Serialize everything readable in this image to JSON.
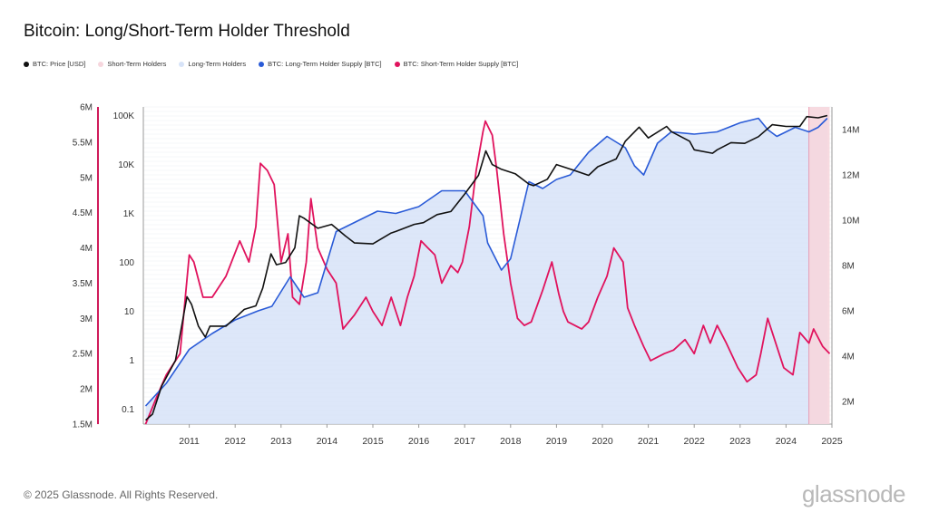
{
  "title": "Bitcoin: Long/Short-Term Holder Threshold",
  "legend": [
    {
      "label": "BTC: Price [USD]",
      "color": "#111111"
    },
    {
      "label": "Short-Term Holders",
      "color": "#f6d6dd"
    },
    {
      "label": "Long-Term Holders",
      "color": "#d7e3f8"
    },
    {
      "label": "BTC: Long-Term Holder Supply [BTC]",
      "color": "#2a5bd7"
    },
    {
      "label": "BTC: Short-Term Holder Supply [BTC]",
      "color": "#e0135d"
    }
  ],
  "footer": "© 2025 Glassnode. All Rights Reserved.",
  "brand": "glassnode",
  "watermark": "glassnode",
  "chart_data": {
    "type": "line",
    "x_ticks": [
      "2011",
      "2012",
      "2013",
      "2014",
      "2015",
      "2016",
      "2017",
      "2018",
      "2019",
      "2020",
      "2021",
      "2022",
      "2023",
      "2024",
      "2025"
    ],
    "axes": {
      "left_outer": {
        "ticks": [
          "1.5M",
          "2M",
          "2.5M",
          "3M",
          "3.5M",
          "4M",
          "4.5M",
          "5M",
          "5.5M",
          "6M"
        ],
        "range": [
          1500000,
          6000000
        ]
      },
      "left_inner": {
        "scale": "log",
        "ticks": [
          "0.1",
          "1",
          "10",
          "100",
          "1K",
          "10K",
          "100K"
        ],
        "range": [
          0.05,
          150000
        ]
      },
      "right": {
        "ticks": [
          "2M",
          "4M",
          "6M",
          "8M",
          "10M",
          "12M",
          "14M"
        ],
        "range": [
          1000000,
          15000000
        ]
      }
    },
    "series": [
      {
        "name": "BTC: Price [USD]",
        "color": "#111111",
        "axis": "left_inner",
        "x": [
          2010.55,
          2010.7,
          2010.9,
          2011.2,
          2011.45,
          2011.55,
          2011.7,
          2011.85,
          2011.95,
          2012.3,
          2012.7,
          2012.95,
          2013.1,
          2013.28,
          2013.4,
          2013.6,
          2013.8,
          2013.9,
          2014.0,
          2014.3,
          2014.6,
          2014.9,
          2015.1,
          2015.5,
          2015.9,
          2016.0,
          2016.4,
          2016.6,
          2016.9,
          2017.2,
          2017.5,
          2017.8,
          2017.96,
          2018.1,
          2018.3,
          2018.6,
          2018.9,
          2019.0,
          2019.3,
          2019.5,
          2019.9,
          2020.2,
          2020.4,
          2020.8,
          2021.0,
          2021.3,
          2021.5,
          2021.9,
          2022.0,
          2022.4,
          2022.5,
          2022.9,
          2023.0,
          2023.3,
          2023.6,
          2023.9,
          2024.2,
          2024.5,
          2024.8,
          2024.95,
          2025.2,
          2025.4
        ],
        "y": [
          0.06,
          0.08,
          0.3,
          1.0,
          20,
          14,
          5,
          3,
          5,
          5,
          11,
          13,
          30,
          150,
          90,
          100,
          200,
          900,
          800,
          500,
          600,
          350,
          250,
          240,
          400,
          430,
          600,
          650,
          950,
          1100,
          2500,
          6000,
          19000,
          10000,
          8000,
          6500,
          4000,
          3700,
          5000,
          10000,
          7500,
          6000,
          9000,
          13000,
          30000,
          58000,
          35000,
          60000,
          47000,
          30000,
          20000,
          17000,
          20000,
          28000,
          27000,
          37000,
          65000,
          60000,
          60000,
          95000,
          90000,
          100000
        ]
      },
      {
        "name": "BTC: Long-Term Holder Supply [BTC]",
        "color": "#2a5bd7",
        "axis": "right",
        "x": [
          2010.55,
          2011.0,
          2011.5,
          2012.0,
          2012.5,
          2013.0,
          2013.3,
          2013.7,
          2014.0,
          2014.3,
          2014.7,
          2015.2,
          2015.6,
          2016.0,
          2016.5,
          2017.0,
          2017.5,
          2017.9,
          2018.0,
          2018.3,
          2018.5,
          2018.9,
          2019.2,
          2019.5,
          2019.8,
          2020.2,
          2020.6,
          2021.0,
          2021.2,
          2021.4,
          2021.7,
          2022.0,
          2022.5,
          2023.0,
          2023.5,
          2023.9,
          2024.1,
          2024.3,
          2024.7,
          2025.0,
          2025.2,
          2025.4
        ],
        "y": [
          1.8,
          2.8,
          4.3,
          5.0,
          5.6,
          6.0,
          6.2,
          7.5,
          6.6,
          6.8,
          9.5,
          10.0,
          10.4,
          10.3,
          10.6,
          11.3,
          11.3,
          10.2,
          9.0,
          7.8,
          8.3,
          11.7,
          11.4,
          11.8,
          12.0,
          13.0,
          13.7,
          13.2,
          12.4,
          12.0,
          13.4,
          13.9,
          13.8,
          13.9,
          14.3,
          14.5,
          14.0,
          13.7,
          14.1,
          13.9,
          14.1,
          14.5
        ]
      },
      {
        "name": "BTC: Short-Term Holder Supply [BTC]",
        "color": "#e0135d",
        "axis": "left_outer",
        "x": [
          2010.55,
          2010.8,
          2011.0,
          2011.3,
          2011.5,
          2011.6,
          2011.8,
          2012.0,
          2012.3,
          2012.6,
          2012.8,
          2012.95,
          2013.05,
          2013.2,
          2013.35,
          2013.5,
          2013.65,
          2013.75,
          2013.9,
          2014.05,
          2014.15,
          2014.3,
          2014.5,
          2014.7,
          2014.85,
          2015.1,
          2015.35,
          2015.5,
          2015.7,
          2015.9,
          2016.1,
          2016.25,
          2016.4,
          2016.55,
          2016.7,
          2016.85,
          2017.0,
          2017.2,
          2017.35,
          2017.45,
          2017.6,
          2017.75,
          2017.9,
          2017.95,
          2018.1,
          2018.2,
          2018.35,
          2018.5,
          2018.65,
          2018.8,
          2018.95,
          2019.2,
          2019.4,
          2019.55,
          2019.65,
          2019.75,
          2019.9,
          2020.05,
          2020.2,
          2020.4,
          2020.6,
          2020.75,
          2020.95,
          2021.05,
          2021.2,
          2021.4,
          2021.55,
          2021.7,
          2021.85,
          2022.05,
          2022.3,
          2022.5,
          2022.7,
          2022.85,
          2023.0,
          2023.2,
          2023.45,
          2023.65,
          2023.85,
          2023.95,
          2024.1,
          2024.25,
          2024.45,
          2024.65,
          2024.8,
          2025.0,
          2025.1,
          2025.3,
          2025.45
        ],
        "y": [
          1.5,
          1.9,
          2.2,
          2.5,
          3.9,
          3.8,
          3.3,
          3.3,
          3.6,
          4.1,
          3.8,
          4.3,
          5.2,
          5.1,
          4.9,
          3.8,
          4.2,
          3.3,
          3.2,
          3.8,
          4.7,
          4.0,
          3.7,
          3.5,
          2.85,
          3.05,
          3.3,
          3.1,
          2.9,
          3.3,
          2.9,
          3.3,
          3.6,
          4.1,
          4.0,
          3.9,
          3.5,
          3.75,
          3.65,
          3.8,
          4.3,
          5.1,
          5.65,
          5.8,
          5.6,
          5.1,
          4.2,
          3.5,
          3.0,
          2.9,
          2.95,
          3.4,
          3.8,
          3.35,
          3.1,
          2.95,
          2.9,
          2.85,
          2.95,
          3.3,
          3.6,
          4.0,
          3.8,
          3.15,
          2.9,
          2.6,
          2.4,
          2.45,
          2.5,
          2.55,
          2.7,
          2.5,
          2.9,
          2.65,
          2.9,
          2.65,
          2.3,
          2.1,
          2.2,
          2.5,
          3.0,
          2.7,
          2.3,
          2.2,
          2.8,
          2.65,
          2.85,
          2.6,
          2.5
        ]
      }
    ],
    "shaded_regions": [
      {
        "name": "Long-Term Holders",
        "color": "#d7e3f8",
        "under": "BTC: Long-Term Holder Supply [BTC]"
      },
      {
        "name": "Short-Term Holders",
        "color": "#f6d6dd",
        "x_range": [
          2025.0,
          2025.45
        ]
      }
    ]
  }
}
